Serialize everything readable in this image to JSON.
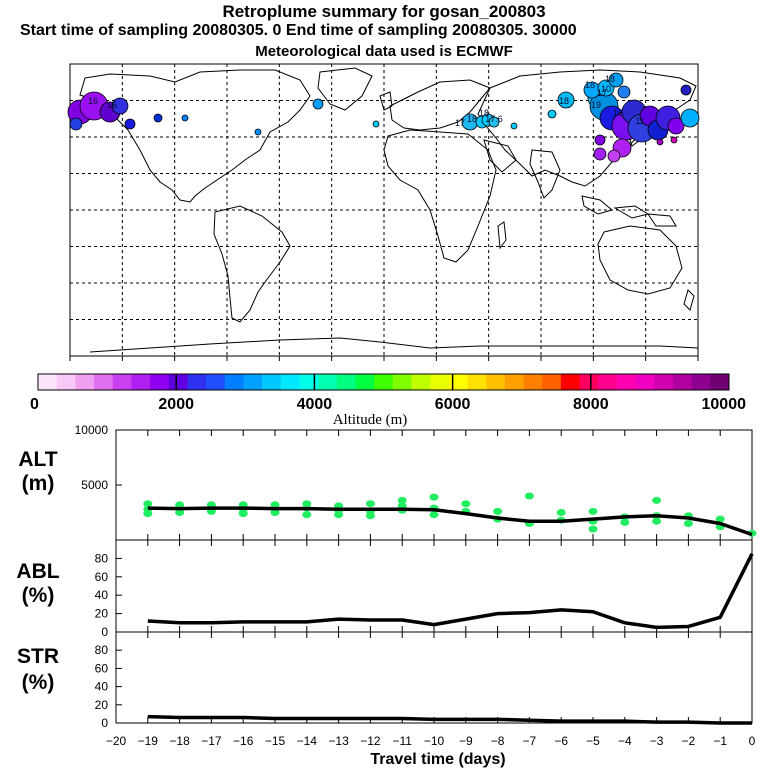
{
  "header": {
    "title": "Retroplume summary for gosan_200803",
    "sampling": "Start time of sampling 20080305.     0     End time of sampling 20080305. 30000",
    "meteo": "Meteorological data used is ECMWF"
  },
  "map": {
    "labels": [
      "16",
      "16",
      "17",
      "18",
      "18",
      "17.6",
      "18",
      "19",
      "17",
      "18",
      "18",
      "16",
      "11",
      "10"
    ]
  },
  "colorbar": {
    "colors": [
      "#fde6fd",
      "#f8c8f8",
      "#f0a0f0",
      "#e070f0",
      "#c840f0",
      "#b020f0",
      "#9000f0",
      "#6000e0",
      "#3030f0",
      "#2050ff",
      "#0080ff",
      "#00a0ff",
      "#00c8ff",
      "#00e8ff",
      "#00ffe8",
      "#00ffb0",
      "#00ff80",
      "#00ff40",
      "#40ff00",
      "#80ff00",
      "#c0ff00",
      "#e8ff00",
      "#ffff00",
      "#ffe000",
      "#ffc000",
      "#ffa000",
      "#ff8000",
      "#ff6000",
      "#ff0000",
      "#ff0060",
      "#ff0090",
      "#ff00b0",
      "#f000c0",
      "#d000b0",
      "#b000a0",
      "#900090",
      "#700070"
    ],
    "tick_labels": [
      "0",
      "2000",
      "4000",
      "6000",
      "8000",
      "10000"
    ],
    "tick_values": [
      0,
      2000,
      4000,
      6000,
      8000,
      10000
    ],
    "xlabel": "Altitude (m)"
  },
  "chart_data": [
    {
      "type": "line",
      "panel": "altitude",
      "label_line1": "ALT",
      "label_line2": "(m)",
      "ylim": [
        0,
        10000
      ],
      "yticks": [
        {
          "v": 0,
          "t": ""
        },
        {
          "v": 5000,
          "t": "5000"
        },
        {
          "v": 10000,
          "t": "10000"
        }
      ],
      "x": [
        -19,
        -18,
        -17,
        -16,
        -15,
        -14,
        -13,
        -12,
        -11,
        -10,
        -9,
        -8,
        -7,
        -6,
        -5,
        -4,
        -3,
        -2,
        -1,
        0
      ],
      "values": [
        2900,
        2850,
        2900,
        2900,
        2850,
        2850,
        2800,
        2800,
        2800,
        2750,
        2400,
        2000,
        1700,
        1700,
        1900,
        2100,
        2200,
        2000,
        1500,
        500
      ],
      "scatter_color": "#20ee60",
      "scatter": [
        [
          -19,
          2800
        ],
        [
          -19,
          3300
        ],
        [
          -19,
          2400
        ],
        [
          -18,
          2900
        ],
        [
          -18,
          3200
        ],
        [
          -18,
          2500
        ],
        [
          -17,
          2800
        ],
        [
          -17,
          3200
        ],
        [
          -17,
          2600
        ],
        [
          -16,
          2800
        ],
        [
          -16,
          3200
        ],
        [
          -16,
          2400
        ],
        [
          -15,
          2800
        ],
        [
          -15,
          3200
        ],
        [
          -15,
          2500
        ],
        [
          -14,
          2900
        ],
        [
          -14,
          3300
        ],
        [
          -14,
          2300
        ],
        [
          -13,
          2700
        ],
        [
          -13,
          3100
        ],
        [
          -13,
          2300
        ],
        [
          -12,
          2600
        ],
        [
          -12,
          3300
        ],
        [
          -12,
          2200
        ],
        [
          -11,
          2700
        ],
        [
          -11,
          3100
        ],
        [
          -11,
          3600
        ],
        [
          -10,
          2900
        ],
        [
          -10,
          2300
        ],
        [
          -10,
          3900
        ],
        [
          -9,
          2600
        ],
        [
          -9,
          3300
        ],
        [
          -8,
          2600
        ],
        [
          -8,
          1900
        ],
        [
          -7,
          1500
        ],
        [
          -7,
          4000
        ],
        [
          -6,
          1800
        ],
        [
          -6,
          2500
        ],
        [
          -5,
          1700
        ],
        [
          -5,
          2600
        ],
        [
          -5,
          1000
        ],
        [
          -4,
          2100
        ],
        [
          -4,
          1600
        ],
        [
          -3,
          2200
        ],
        [
          -3,
          1700
        ],
        [
          -3,
          3600
        ],
        [
          -2,
          2200
        ],
        [
          -2,
          1500
        ],
        [
          -1,
          1900
        ],
        [
          -1,
          1200
        ],
        [
          0,
          600
        ]
      ]
    },
    {
      "type": "line",
      "panel": "abl",
      "label_line1": "ABL",
      "label_line2": "(%)",
      "ylim": [
        0,
        100
      ],
      "yticks": [
        {
          "v": 0,
          "t": "0"
        },
        {
          "v": 20,
          "t": "20"
        },
        {
          "v": 40,
          "t": "40"
        },
        {
          "v": 60,
          "t": "60"
        },
        {
          "v": 80,
          "t": "80"
        }
      ],
      "x": [
        -19,
        -18,
        -17,
        -16,
        -15,
        -14,
        -13,
        -12,
        -11,
        -10,
        -9,
        -8,
        -7,
        -6,
        -5,
        -4,
        -3,
        -2,
        -1,
        0
      ],
      "values": [
        12,
        10,
        10,
        11,
        11,
        11,
        14,
        13,
        13,
        8,
        14,
        20,
        21,
        24,
        22,
        10,
        5,
        6,
        16,
        85
      ]
    },
    {
      "type": "line",
      "panel": "stratosphere",
      "label_line1": "STR",
      "label_line2": "(%)",
      "ylim": [
        0,
        100
      ],
      "yticks": [
        {
          "v": 0,
          "t": "0"
        },
        {
          "v": 20,
          "t": "20"
        },
        {
          "v": 40,
          "t": "40"
        },
        {
          "v": 60,
          "t": "60"
        },
        {
          "v": 80,
          "t": "80"
        }
      ],
      "x": [
        -19,
        -18,
        -17,
        -16,
        -15,
        -14,
        -13,
        -12,
        -11,
        -10,
        -9,
        -8,
        -7,
        -6,
        -5,
        -4,
        -3,
        -2,
        -1,
        0
      ],
      "values": [
        7,
        6,
        6,
        6,
        5,
        5,
        5,
        5,
        5,
        4,
        4,
        4,
        3,
        2,
        2,
        2,
        1,
        1,
        0,
        0
      ]
    }
  ],
  "xaxis": {
    "tick_values": [
      -20,
      -19,
      -18,
      -17,
      -16,
      -15,
      -14,
      -13,
      -12,
      -11,
      -10,
      -9,
      -8,
      -7,
      -6,
      -5,
      -4,
      -3,
      -2,
      -1,
      0
    ],
    "tick_labels": [
      "−20",
      "−19",
      "−18",
      "−17",
      "−16",
      "−15",
      "−14",
      "−13",
      "−12",
      "−11",
      "−10",
      "−9",
      "−8",
      "−7",
      "−6",
      "−5",
      "−4",
      "−3",
      "−2",
      "−1",
      "0"
    ],
    "xlim": [
      -20,
      0
    ],
    "xlabel": "Travel time (days)"
  }
}
